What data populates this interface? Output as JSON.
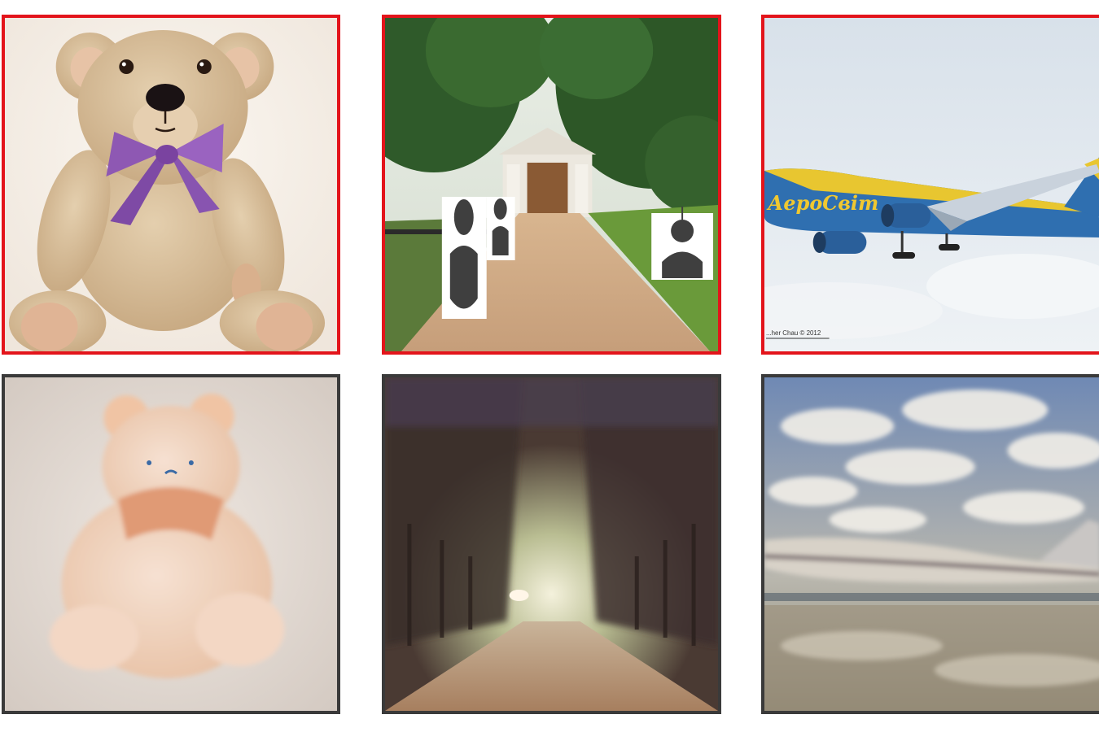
{
  "grid": {
    "rows": [
      {
        "row": "source",
        "tiles": [
          {
            "id": "bear",
            "subject": "teddy-bear-photo"
          },
          {
            "id": "park",
            "subject": "park-path-photo"
          },
          {
            "id": "plane",
            "subject": "airliner-photo"
          }
        ]
      },
      {
        "row": "generated",
        "tiles": [
          {
            "id": "bear",
            "subject": "teddy-bear-generated"
          },
          {
            "id": "park",
            "subject": "park-path-generated"
          },
          {
            "id": "plane",
            "subject": "airliner-generated"
          }
        ]
      }
    ]
  },
  "plane": {
    "livery": "АероСвіт",
    "credit": "...her Chau © 2012"
  },
  "colors": {
    "source_frame": "#e3141b",
    "generated_frame": "#3a3a3a"
  }
}
